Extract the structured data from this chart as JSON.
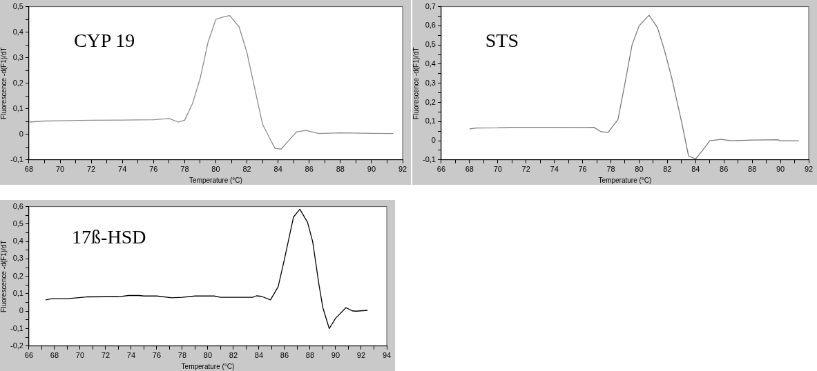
{
  "chart_data": [
    {
      "type": "line",
      "title": "CYP 19",
      "xlabel": "Temperature (°C)",
      "ylabel": "Fluorescence -d(F1)/dT",
      "xlim": [
        68,
        92
      ],
      "ylim": [
        -0.1,
        0.5
      ],
      "xticks": [
        68,
        {
          "value": 69,
          "label": null
        },
        70,
        {
          "value": 71,
          "label": null
        },
        72,
        {
          "value": 73,
          "label": null
        },
        74,
        {
          "value": 75,
          "label": null
        },
        76,
        {
          "value": 77,
          "label": null
        },
        78,
        {
          "value": 79,
          "label": null
        },
        80,
        {
          "value": 81,
          "label": null
        },
        82,
        {
          "value": 83,
          "label": null
        },
        84,
        {
          "value": 85,
          "label": null
        },
        86,
        {
          "value": 87,
          "label": null
        },
        88,
        {
          "value": 89,
          "label": null
        },
        90,
        {
          "value": 91,
          "label": null
        },
        92
      ],
      "yticks": [
        {
          "value": -0.1,
          "label": "-0,1"
        },
        {
          "value": -0.05,
          "label": null
        },
        {
          "value": 0,
          "label": "0"
        },
        {
          "value": 0.05,
          "label": null
        },
        {
          "value": 0.1,
          "label": "0,1"
        },
        {
          "value": 0.15,
          "label": null
        },
        {
          "value": 0.2,
          "label": "0,2"
        },
        {
          "value": 0.25,
          "label": null
        },
        {
          "value": 0.3,
          "label": "0,3"
        },
        {
          "value": 0.35,
          "label": null
        },
        {
          "value": 0.4,
          "label": "0,4"
        },
        {
          "value": 0.45,
          "label": null
        },
        {
          "value": 0.5,
          "label": "0,5"
        }
      ],
      "legend": false,
      "marker": "none",
      "line_style": "solid",
      "series": [
        {
          "color": "#8c8c8c",
          "x": [
            68,
            69,
            70,
            72,
            74,
            76,
            77,
            77.6,
            78,
            78.5,
            79,
            79.5,
            80,
            80.5,
            80.9,
            81.5,
            82,
            82.5,
            83,
            83.5,
            83.8,
            84.2,
            84.6,
            85.2,
            85.8,
            86.6,
            88,
            90,
            91.4
          ],
          "values": [
            0.048,
            0.052,
            0.053,
            0.055,
            0.056,
            0.057,
            0.062,
            0.048,
            0.055,
            0.12,
            0.22,
            0.36,
            0.45,
            0.46,
            0.465,
            0.42,
            0.32,
            0.18,
            0.04,
            -0.02,
            -0.055,
            -0.058,
            -0.03,
            0.01,
            0.015,
            0.003,
            0.006,
            0.004,
            0.003
          ]
        }
      ]
    },
    {
      "type": "line",
      "title": "STS",
      "xlabel": "Temperature (°C)",
      "ylabel": "Fluorescence -d(F1)/dT",
      "xlim": [
        66,
        92
      ],
      "ylim": [
        -0.1,
        0.7
      ],
      "xticks": [
        66,
        {
          "value": 67,
          "label": null
        },
        68,
        {
          "value": 69,
          "label": null
        },
        70,
        {
          "value": 71,
          "label": null
        },
        72,
        {
          "value": 73,
          "label": null
        },
        74,
        {
          "value": 75,
          "label": null
        },
        76,
        {
          "value": 77,
          "label": null
        },
        78,
        {
          "value": 79,
          "label": null
        },
        80,
        {
          "value": 81,
          "label": null
        },
        82,
        {
          "value": 83,
          "label": null
        },
        84,
        {
          "value": 85,
          "label": null
        },
        86,
        {
          "value": 87,
          "label": null
        },
        88,
        {
          "value": 89,
          "label": null
        },
        90,
        {
          "value": 91,
          "label": null
        },
        92
      ],
      "yticks": [
        {
          "value": -0.1,
          "label": "-0,1"
        },
        {
          "value": -0.05,
          "label": null
        },
        {
          "value": 0,
          "label": "0"
        },
        {
          "value": 0.05,
          "label": null
        },
        {
          "value": 0.1,
          "label": "0,1"
        },
        {
          "value": 0.15,
          "label": null
        },
        {
          "value": 0.2,
          "label": "0,2"
        },
        {
          "value": 0.25,
          "label": null
        },
        {
          "value": 0.3,
          "label": "0,3"
        },
        {
          "value": 0.35,
          "label": null
        },
        {
          "value": 0.4,
          "label": "0,4"
        },
        {
          "value": 0.45,
          "label": null
        },
        {
          "value": 0.5,
          "label": "0,5"
        },
        {
          "value": 0.55,
          "label": null
        },
        {
          "value": 0.6,
          "label": "0,6"
        },
        {
          "value": 0.65,
          "label": null
        },
        {
          "value": 0.7,
          "label": "0,7"
        }
      ],
      "legend": false,
      "marker": "none",
      "line_style": "solid",
      "series": [
        {
          "color": "#7a7a7a",
          "x": [
            68,
            68.5,
            70,
            71,
            74,
            76,
            76.8,
            77.3,
            77.8,
            78.5,
            79,
            79.5,
            80,
            80.7,
            81.3,
            81.8,
            82.3,
            83,
            83.5,
            84,
            84.5,
            85,
            85.8,
            86.5,
            88,
            89.8,
            90,
            91.3
          ],
          "values": [
            0.062,
            0.066,
            0.067,
            0.07,
            0.07,
            0.069,
            0.07,
            0.047,
            0.043,
            0.11,
            0.3,
            0.5,
            0.6,
            0.655,
            0.59,
            0.47,
            0.33,
            0.1,
            -0.08,
            -0.095,
            -0.05,
            0,
            0.007,
            0,
            0.003,
            0.005,
            0,
            0
          ]
        }
      ]
    },
    {
      "type": "line",
      "title": "17ß-HSD",
      "xlabel": "Temperature (°C)",
      "ylabel": "Fluorescence -d(F1)/dT",
      "xlim": [
        66,
        94
      ],
      "ylim": [
        -0.2,
        0.6
      ],
      "xticks": [
        66,
        {
          "value": 67,
          "label": null
        },
        68,
        {
          "value": 69,
          "label": null
        },
        70,
        {
          "value": 71,
          "label": null
        },
        72,
        {
          "value": 73,
          "label": null
        },
        74,
        {
          "value": 75,
          "label": null
        },
        76,
        {
          "value": 77,
          "label": null
        },
        78,
        {
          "value": 79,
          "label": null
        },
        80,
        {
          "value": 81,
          "label": null
        },
        82,
        {
          "value": 83,
          "label": null
        },
        84,
        {
          "value": 85,
          "label": null
        },
        86,
        {
          "value": 87,
          "label": null
        },
        88,
        {
          "value": 89,
          "label": null
        },
        90,
        {
          "value": 91,
          "label": null
        },
        92,
        {
          "value": 93,
          "label": null
        },
        94
      ],
      "yticks": [
        {
          "value": -0.2,
          "label": "-0,2"
        },
        {
          "value": -0.15,
          "label": null
        },
        {
          "value": -0.1,
          "label": "-0,1"
        },
        {
          "value": -0.05,
          "label": null
        },
        {
          "value": 0,
          "label": "0"
        },
        {
          "value": 0.05,
          "label": null
        },
        {
          "value": 0.1,
          "label": "0,1"
        },
        {
          "value": 0.15,
          "label": null
        },
        {
          "value": 0.2,
          "label": "0,2"
        },
        {
          "value": 0.25,
          "label": null
        },
        {
          "value": 0.3,
          "label": "0,3"
        },
        {
          "value": 0.35,
          "label": null
        },
        {
          "value": 0.4,
          "label": "0,4"
        },
        {
          "value": 0.45,
          "label": null
        },
        {
          "value": 0.5,
          "label": "0,5"
        },
        {
          "value": 0.55,
          "label": null
        },
        {
          "value": 0.6,
          "label": "0,6"
        }
      ],
      "legend": false,
      "marker": "none",
      "line_style": "solid",
      "series": [
        {
          "color": "#000000",
          "x": [
            67.3,
            67.8,
            69,
            70.5,
            72,
            73,
            73.8,
            74.6,
            75,
            76,
            77.2,
            78,
            79,
            80.5,
            81,
            83.5,
            83.8,
            84.2,
            84.9,
            85.5,
            86,
            86.7,
            87.2,
            87.8,
            88.2,
            88.7,
            89,
            89.5,
            90,
            90.8,
            91.3,
            91.6,
            92.5
          ],
          "values": [
            0.065,
            0.072,
            0.072,
            0.082,
            0.083,
            0.083,
            0.09,
            0.09,
            0.087,
            0.087,
            0.077,
            0.08,
            0.087,
            0.087,
            0.08,
            0.08,
            0.088,
            0.085,
            0.065,
            0.14,
            0.3,
            0.54,
            0.585,
            0.51,
            0.4,
            0.15,
            0.02,
            -0.1,
            -0.04,
            0.02,
            0.002,
            0,
            0.005
          ]
        }
      ]
    }
  ]
}
